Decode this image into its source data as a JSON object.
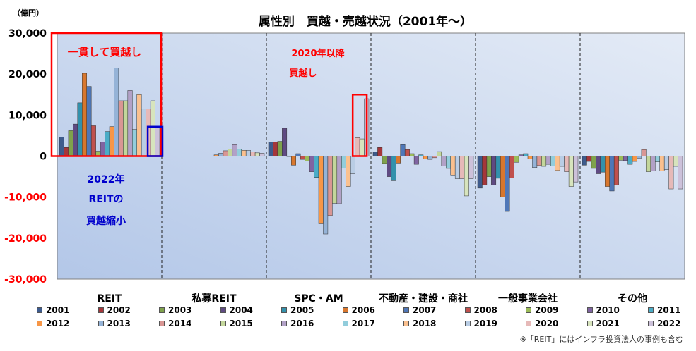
{
  "chart_data": {
    "type": "bar",
    "title": "属性別　買越・売越状況（2001年～）",
    "ylabel": "（億円）",
    "ylim": [
      -30000,
      30000
    ],
    "yticks": [
      30000,
      20000,
      10000,
      0,
      -10000,
      -20000,
      -30000
    ],
    "ytick_labels": [
      "30,000",
      "20,000",
      "10,000",
      "0",
      "-10,000",
      "-20,000",
      "-30,000"
    ],
    "categories": [
      "REIT",
      "私募REIT",
      "SPC・AM",
      "不動産・建設・商社",
      "一般事業会社",
      "その他"
    ],
    "series": [
      {
        "name": "2001",
        "color": "#3E5B8C",
        "values": [
          4600,
          0,
          3400,
          1000,
          -7800,
          -2200
        ]
      },
      {
        "name": "2002",
        "color": "#A5363A",
        "values": [
          2100,
          0,
          3400,
          2100,
          -7000,
          -1300
        ]
      },
      {
        "name": "2003",
        "color": "#7FA24C",
        "values": [
          6200,
          0,
          3600,
          -1800,
          -5000,
          -3000
        ]
      },
      {
        "name": "2004",
        "color": "#5F4A82",
        "values": [
          7800,
          0,
          6800,
          -5000,
          -7000,
          -4300
        ]
      },
      {
        "name": "2005",
        "color": "#3391AC",
        "values": [
          13000,
          0,
          -100,
          -6000,
          -5400,
          -3900
        ]
      },
      {
        "name": "2006",
        "color": "#D8772E",
        "values": [
          20200,
          0,
          -2200,
          -1700,
          -10000,
          -7400
        ]
      },
      {
        "name": "2007",
        "color": "#4F77B8",
        "values": [
          17000,
          0,
          600,
          2800,
          -13500,
          -8500
        ]
      },
      {
        "name": "2008",
        "color": "#C0504D",
        "values": [
          7400,
          0,
          -800,
          1600,
          -5300,
          -7000
        ]
      },
      {
        "name": "2009",
        "color": "#9BBB59",
        "values": [
          1200,
          0,
          -1200,
          600,
          -1500,
          -1000
        ]
      },
      {
        "name": "2010",
        "color": "#8064A2",
        "values": [
          3400,
          0,
          -3800,
          -2000,
          300,
          -1100
        ]
      },
      {
        "name": "2011",
        "color": "#4BACC6",
        "values": [
          6000,
          0,
          -5200,
          300,
          600,
          -2000
        ]
      },
      {
        "name": "2012",
        "color": "#F79646",
        "values": [
          7200,
          300,
          -16500,
          -700,
          -700,
          -1300
        ]
      },
      {
        "name": "2013",
        "color": "#95B3D7",
        "values": [
          21500,
          700,
          -19000,
          -800,
          -2800,
          -500
        ]
      },
      {
        "name": "2014",
        "color": "#D99694",
        "values": [
          13500,
          1300,
          -14500,
          -400,
          -2300,
          1600
        ]
      },
      {
        "name": "2015",
        "color": "#C3D69B",
        "values": [
          13500,
          1700,
          -11500,
          1100,
          -2500,
          -3800
        ]
      },
      {
        "name": "2016",
        "color": "#B2A1C7",
        "values": [
          16000,
          2800,
          -11600,
          -2400,
          -2000,
          -3600
        ]
      },
      {
        "name": "2017",
        "color": "#92CDDC",
        "values": [
          6500,
          1700,
          -2900,
          -3000,
          -2400,
          -1400
        ]
      },
      {
        "name": "2018",
        "color": "#FAC08F",
        "values": [
          15000,
          1400,
          -7400,
          -4600,
          -3500,
          -3600
        ]
      },
      {
        "name": "2019",
        "color": "#B9CDE5",
        "values": [
          11500,
          1400,
          -4300,
          -5500,
          -2500,
          -3300
        ]
      },
      {
        "name": "2020",
        "color": "#E6B9B8",
        "values": [
          11500,
          1000,
          4500,
          -5500,
          -3800,
          -8000
        ]
      },
      {
        "name": "2021",
        "color": "#D7E4BD",
        "values": [
          13500,
          800,
          4200,
          -9700,
          -7400,
          -2500
        ]
      },
      {
        "name": "2022",
        "color": "#CCC1DA",
        "values": [
          7000,
          700,
          14000,
          -5500,
          -6300,
          -8000
        ]
      }
    ],
    "annotations": {
      "red_box_label": "一貫して買越し",
      "red_small_label_line1": "2020年以降",
      "red_small_label_line2": "買越し",
      "blue_label_line1": "2022年",
      "blue_label_line2": "REITの",
      "blue_label_line3": "買越縮小"
    },
    "footnote": "※「REIT」にはインフラ投資法人の事例も含む",
    "colors": {
      "plot_bg_left": "#B3C7E8",
      "plot_bg_right": "#E4EBF6",
      "annotation_red": "#FF0000",
      "annotation_blue": "#0000CC",
      "tick_label_red": "#FF0000"
    }
  }
}
